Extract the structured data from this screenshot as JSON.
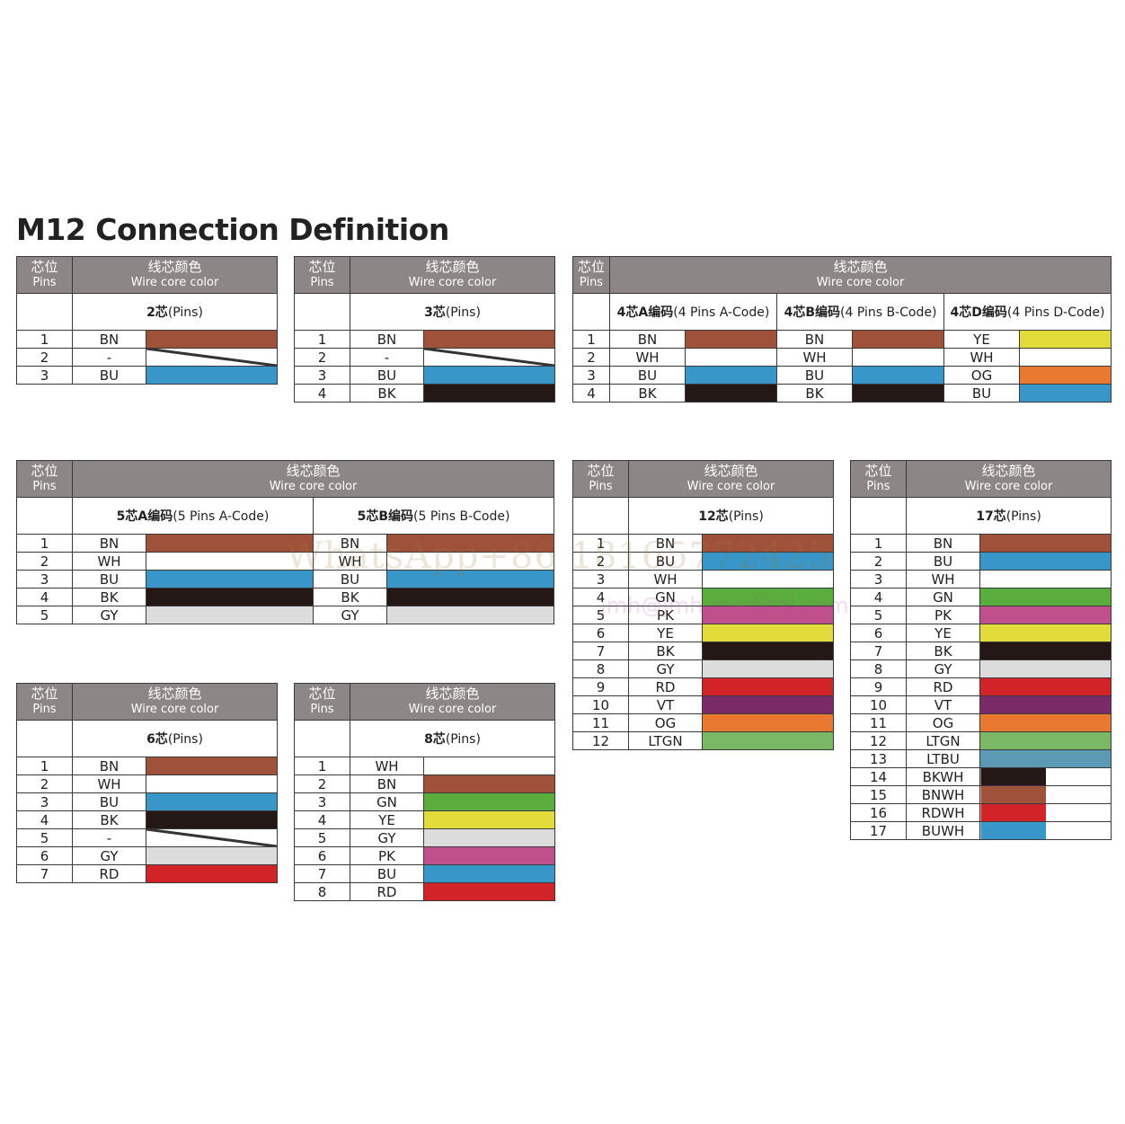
{
  "page": {
    "title": "M12 Connection Definition"
  },
  "labels": {
    "pins_cn": "芯位",
    "pins_en": "Pins",
    "color_cn": "线芯颜色",
    "color_en": "Wire core color"
  },
  "colors": {
    "BN": "#a0513a",
    "WH": "#ffffff",
    "BU": "#3896c8",
    "BK": "#231815",
    "GY": "#dcdcdc",
    "GN": "#5aac3c",
    "YE": "#e2dc3a",
    "PK": "#c0508c",
    "RD": "#d22328",
    "VT": "#7a2a66",
    "OG": "#e8792e",
    "LTGN": "#7ab866",
    "LTBU": "#5a9ab4",
    "header": "#8c8686",
    "border": "#3a3a3a"
  },
  "tables": [
    {
      "id": "t2",
      "groups": [
        {
          "cn": "2芯",
          "en": "(Pins)",
          "rows": [
            [
              "BN",
              "BN"
            ],
            [
              "-",
              "NONE"
            ],
            [
              "BU",
              "BU"
            ]
          ]
        }
      ]
    },
    {
      "id": "t3",
      "groups": [
        {
          "cn": "3芯",
          "en": "(Pins)",
          "rows": [
            [
              "BN",
              "BN"
            ],
            [
              "-",
              "NONE"
            ],
            [
              "BU",
              "BU"
            ],
            [
              "BK",
              "BK"
            ]
          ]
        }
      ]
    },
    {
      "id": "t4",
      "groups": [
        {
          "cn": "4芯A编码",
          "en": "(4 Pins A-Code)",
          "rows": [
            [
              "BN",
              "BN"
            ],
            [
              "WH",
              "WH"
            ],
            [
              "BU",
              "BU"
            ],
            [
              "BK",
              "BK"
            ]
          ]
        },
        {
          "cn": "4芯B编码",
          "en": "(4 Pins B-Code)",
          "rows": [
            [
              "BN",
              "BN"
            ],
            [
              "WH",
              "WH"
            ],
            [
              "BU",
              "BU"
            ],
            [
              "BK",
              "BK"
            ]
          ]
        },
        {
          "cn": "4芯D编码",
          "en": "(4 Pins D-Code)",
          "rows": [
            [
              "YE",
              "YE"
            ],
            [
              "WH",
              "WH"
            ],
            [
              "OG",
              "OG"
            ],
            [
              "BU",
              "BU"
            ]
          ]
        }
      ]
    },
    {
      "id": "t5",
      "groups": [
        {
          "cn": "5芯A编码",
          "en": "(5 Pins A-Code)",
          "rows": [
            [
              "BN",
              "BN"
            ],
            [
              "WH",
              "WH"
            ],
            [
              "BU",
              "BU"
            ],
            [
              "BK",
              "BK"
            ],
            [
              "GY",
              "GY"
            ]
          ]
        },
        {
          "cn": "5芯B编码",
          "en": "(5 Pins B-Code)",
          "rows": [
            [
              "BN",
              "BN"
            ],
            [
              "WH",
              "WH"
            ],
            [
              "BU",
              "BU"
            ],
            [
              "BK",
              "BK"
            ],
            [
              "GY",
              "GY"
            ]
          ]
        }
      ]
    },
    {
      "id": "t12",
      "groups": [
        {
          "cn": "12芯",
          "en": "(Pins)",
          "rows": [
            [
              "BN",
              "BN"
            ],
            [
              "BU",
              "BU"
            ],
            [
              "WH",
              "WH"
            ],
            [
              "GN",
              "GN"
            ],
            [
              "PK",
              "PK"
            ],
            [
              "YE",
              "YE"
            ],
            [
              "BK",
              "BK"
            ],
            [
              "GY",
              "GY"
            ],
            [
              "RD",
              "RD"
            ],
            [
              "VT",
              "VT"
            ],
            [
              "OG",
              "OG"
            ],
            [
              "LTGN",
              "LTGN"
            ]
          ]
        }
      ]
    },
    {
      "id": "t17",
      "groups": [
        {
          "cn": "17芯",
          "en": "(Pins)",
          "rows": [
            [
              "BN",
              "BN"
            ],
            [
              "BU",
              "BU"
            ],
            [
              "WH",
              "WH"
            ],
            [
              "GN",
              "GN"
            ],
            [
              "PK",
              "PK"
            ],
            [
              "YE",
              "YE"
            ],
            [
              "BK",
              "BK"
            ],
            [
              "GY",
              "GY"
            ],
            [
              "RD",
              "RD"
            ],
            [
              "VT",
              "VT"
            ],
            [
              "OG",
              "OG"
            ],
            [
              "LTGN",
              "LTGN"
            ],
            [
              "LTBU",
              "LTBU"
            ],
            [
              "BKWH",
              "BK/WH"
            ],
            [
              "BNWH",
              "BN/WH"
            ],
            [
              "RDWH",
              "RD/WH"
            ],
            [
              "BUWH",
              "BU/WH"
            ]
          ]
        }
      ]
    },
    {
      "id": "t6",
      "groups": [
        {
          "cn": "6芯",
          "en": "(Pins)",
          "rows": [
            [
              "BN",
              "BN"
            ],
            [
              "WH",
              "WH"
            ],
            [
              "BU",
              "BU"
            ],
            [
              "BK",
              "BK"
            ],
            [
              "-",
              "NONE"
            ],
            [
              "GY",
              "GY"
            ],
            [
              "RD",
              "RD"
            ]
          ]
        }
      ]
    },
    {
      "id": "t8",
      "groups": [
        {
          "cn": "8芯",
          "en": "(Pins)",
          "rows": [
            [
              "WH",
              "WH"
            ],
            [
              "BN",
              "BN"
            ],
            [
              "GN",
              "GN"
            ],
            [
              "YE",
              "YE"
            ],
            [
              "GY",
              "GY"
            ],
            [
              "PK",
              "PK"
            ],
            [
              "BU",
              "BU"
            ],
            [
              "RD",
              "RD"
            ]
          ]
        }
      ]
    }
  ],
  "watermarks": {
    "whatsapp": "WhatsApp+86 18165772425",
    "email": "jmh@jmh-medical.com"
  }
}
